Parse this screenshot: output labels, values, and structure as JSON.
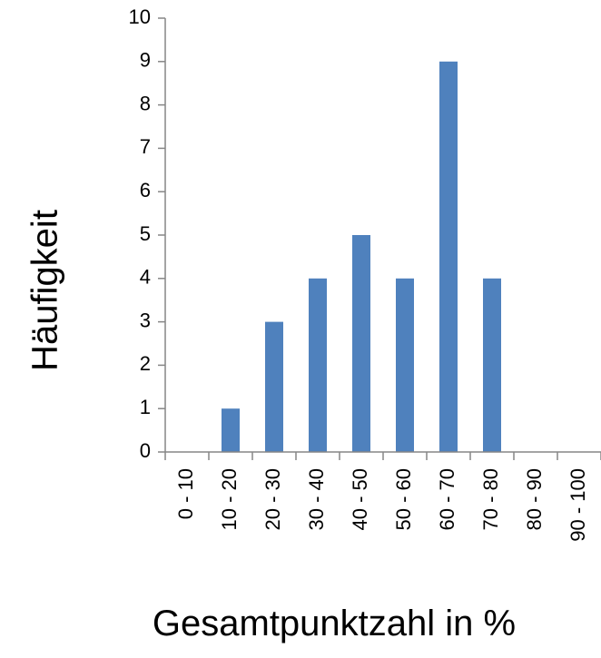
{
  "chart_data": {
    "type": "bar",
    "categories": [
      "0 - 10",
      "10 - 20",
      "20 - 30",
      "30 - 40",
      "40 - 50",
      "50 - 60",
      "60 - 70",
      "70 - 80",
      "80 - 90",
      "90 - 100"
    ],
    "values": [
      0,
      1,
      3,
      4,
      5,
      4,
      9,
      4,
      0,
      0
    ],
    "xlabel": "Gesamtpunktzahl in %",
    "ylabel": "Häufigkeit",
    "ylim": [
      0,
      10
    ],
    "yticks": [
      "0",
      "1",
      "2",
      "3",
      "4",
      "5",
      "6",
      "7",
      "8",
      "9",
      "10"
    ],
    "grid": false,
    "legend": "none",
    "bar_color": "#4F81BD",
    "axis_color": "#868686"
  }
}
